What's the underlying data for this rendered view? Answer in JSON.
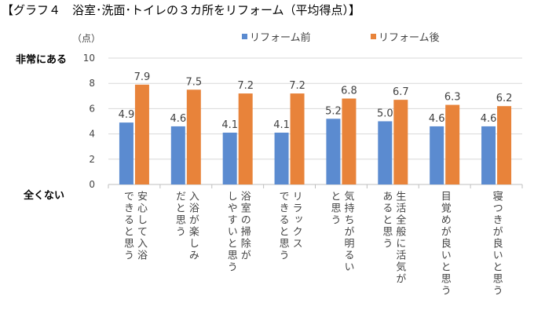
{
  "title": "【グラフ４　浴室･洗面･トイレの３カ所をリフォーム（平均得点）】",
  "chart_data": {
    "type": "bar",
    "ylabel": "（点）",
    "ytop_label": "非常にある",
    "ybottom_label": "全くない",
    "ylim": [
      0,
      10
    ],
    "yticks": [
      0,
      2,
      4,
      6,
      8,
      10
    ],
    "grid": true,
    "legend_position": "top",
    "categories": [
      "安心して入浴\nできると思う",
      "入浴が楽しみ\nだと思う",
      "浴室の掃除が\nしやすいと思う",
      "リラックス\nできると思う",
      "気持ちが明るい\nと思う",
      "生活全般に活気が\nあると思う",
      "目覚めが良いと思う",
      "寝つきが良いと思う"
    ],
    "series": [
      {
        "name": "リフォーム前",
        "color": "#5B8BD0",
        "values": [
          4.9,
          4.6,
          4.1,
          4.1,
          5.2,
          5.0,
          4.6,
          4.6
        ],
        "labels": [
          "4.9",
          "4.6",
          "4.1",
          "4.1",
          "5.2",
          "5.0",
          "4.6",
          "4.6"
        ]
      },
      {
        "name": "リフォーム後",
        "color": "#E8833A",
        "values": [
          7.9,
          7.5,
          7.2,
          7.2,
          6.8,
          6.7,
          6.3,
          6.2
        ],
        "labels": [
          "7.9",
          "7.5",
          "7.2",
          "7.2",
          "6.8",
          "6.7",
          "6.3",
          "6.2"
        ]
      }
    ]
  }
}
